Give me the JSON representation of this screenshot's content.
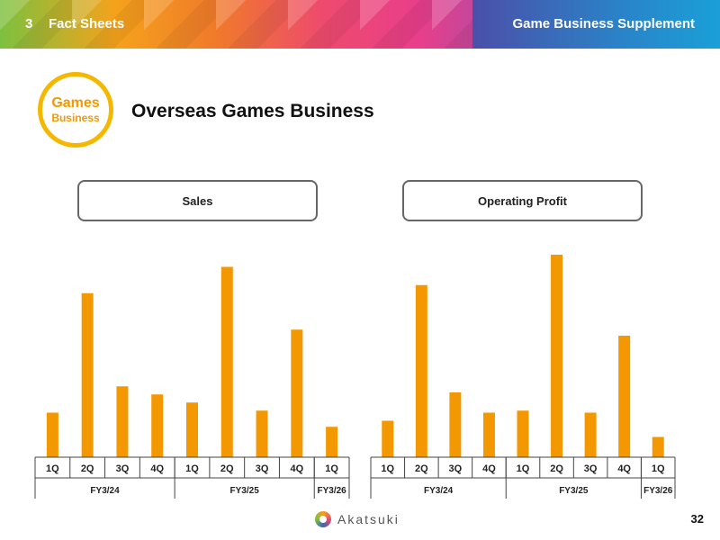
{
  "header": {
    "section_number": "3",
    "section_title": "Fact Sheets",
    "supplement_title": "Game Business Supplement"
  },
  "badge": {
    "line1": "Games",
    "line2": "Business"
  },
  "page_title": "Overseas Games Business",
  "charts": [
    {
      "header": "Sales"
    },
    {
      "header": "Operating Profit"
    }
  ],
  "colors": {
    "bar": "#f39800",
    "badge_ring": "#f5b800"
  },
  "logo": {
    "name": "Akatsuki"
  },
  "page_number": "32",
  "chart_data": [
    {
      "type": "bar",
      "title": "Sales",
      "categories": [
        "1Q",
        "2Q",
        "3Q",
        "4Q",
        "1Q",
        "2Q",
        "3Q",
        "4Q",
        "1Q"
      ],
      "groups": [
        {
          "label": "FY3/24",
          "count": 4
        },
        {
          "label": "FY3/25",
          "count": 4
        },
        {
          "label": "FY3/26",
          "count": 1
        }
      ],
      "values": [
        22,
        81,
        35,
        31,
        27,
        94,
        23,
        63,
        15
      ],
      "ylim": [
        0,
        100
      ],
      "values_note": "relative heights; no axis or data labels shown"
    },
    {
      "type": "bar",
      "title": "Operating Profit",
      "categories": [
        "1Q",
        "2Q",
        "3Q",
        "4Q",
        "1Q",
        "2Q",
        "3Q",
        "4Q",
        "1Q"
      ],
      "groups": [
        {
          "label": "FY3/24",
          "count": 4
        },
        {
          "label": "FY3/25",
          "count": 4
        },
        {
          "label": "FY3/26",
          "count": 1
        }
      ],
      "values": [
        18,
        85,
        32,
        22,
        23,
        100,
        22,
        60,
        10
      ],
      "ylim": [
        0,
        100
      ]
    }
  ]
}
